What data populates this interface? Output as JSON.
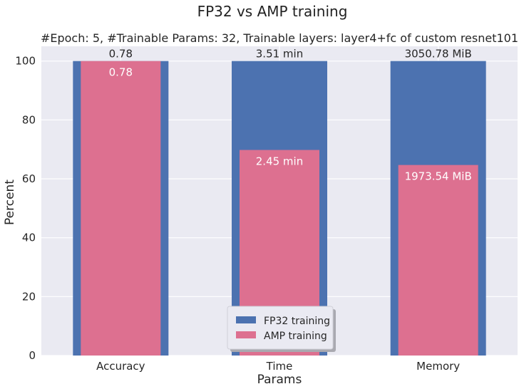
{
  "chart_data": {
    "type": "bar",
    "suptitle": "FP32 vs AMP training",
    "title": "#Epoch: 5, #Trainable Params: 32, Trainable layers: layer4+fc of custom resnet101",
    "xlabel": "Params",
    "ylabel": "Percent",
    "categories": [
      "Accuracy",
      "Time",
      "Memory"
    ],
    "ylim": [
      0,
      105
    ],
    "yticks": [
      0,
      20,
      40,
      60,
      80,
      100
    ],
    "grid": true,
    "legend_position": "lower-center",
    "series": [
      {
        "name": "FP32 training",
        "color": "#4c72b0",
        "values": [
          100,
          100,
          100
        ],
        "labels": [
          "0.78",
          "3.51 min",
          "3050.78 MiB"
        ]
      },
      {
        "name": "AMP training",
        "color": "#dd7090",
        "values": [
          100,
          69.8,
          64.7
        ],
        "labels": [
          "0.78",
          "2.45 min",
          "1973.54 MiB"
        ]
      }
    ]
  }
}
